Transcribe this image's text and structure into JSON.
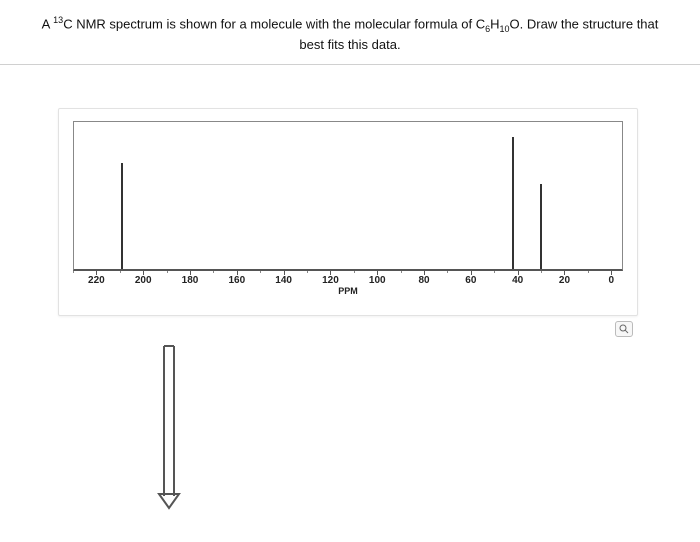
{
  "question": {
    "line1_prefix": "A ",
    "sup13": "13",
    "line1_mid": "C NMR spectrum is shown for a molecule with the molecular formula of C",
    "sub6": "6",
    "line1_h": "H",
    "sub10": "10",
    "line1_o": "O. Draw the structure that",
    "line2": "best fits this data."
  },
  "spectrum": {
    "type": "line-spectrum",
    "xlim": [
      230,
      -5
    ],
    "background_color": "#ffffff",
    "border_color": "#888888",
    "axis_color": "#555555",
    "tick_labels": [
      "220",
      "200",
      "180",
      "160",
      "140",
      "120",
      "100",
      "80",
      "60",
      "40",
      "20",
      "0"
    ],
    "tick_positions_ppm": [
      220,
      200,
      180,
      160,
      140,
      120,
      100,
      80,
      60,
      40,
      20,
      0
    ],
    "minor_tick_step": 10,
    "axis_title": "PPM",
    "label_fontsize": 10,
    "peaks": [
      {
        "ppm": 210,
        "height_pct": 72,
        "color": "#333333"
      },
      {
        "ppm": 42,
        "height_pct": 90,
        "color": "#333333"
      },
      {
        "ppm": 30,
        "height_pct": 58,
        "color": "#333333"
      }
    ]
  },
  "zoom": {
    "icon": "zoom-icon"
  },
  "arrow": {
    "stroke": "#555555",
    "stroke_width": 2
  }
}
